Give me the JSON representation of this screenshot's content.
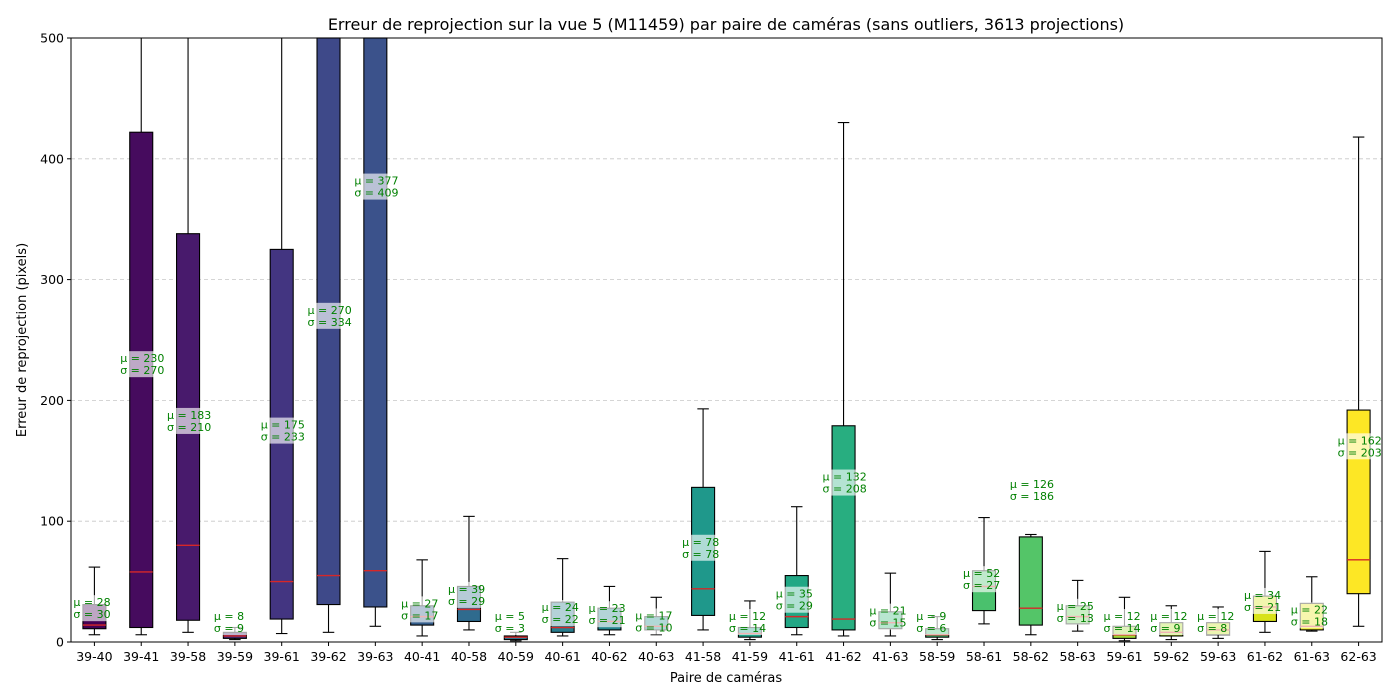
{
  "chart_data": {
    "type": "box",
    "title": "Erreur de reprojection sur la vue 5 (M11459) par paire de caméras (sans outliers, 3613 projections)",
    "xlabel": "Paire de caméras",
    "ylabel": "Erreur de reprojection (pixels)",
    "ylim": [
      0,
      500
    ],
    "yticks": [
      "0",
      "100",
      "200",
      "300",
      "400",
      "500"
    ],
    "grid": "horizontal dashed",
    "median_color": "#d62728",
    "annotation_color": "#008000",
    "boxes": [
      {
        "label": "39-40",
        "whislo": 6,
        "q1": 11,
        "med": 14,
        "q3": 31,
        "whishi": 62,
        "color": "#440154",
        "mean_text": "μ = 28",
        "std_text": "σ = 30"
      },
      {
        "label": "39-41",
        "whislo": 6,
        "q1": 12,
        "med": 58,
        "q3": 422,
        "whishi": 500,
        "color": "#460b5e",
        "mean_text": "μ = 230",
        "std_text": "σ = 270"
      },
      {
        "label": "39-58",
        "whislo": 8,
        "q1": 18,
        "med": 80,
        "q3": 338,
        "whishi": 500,
        "color": "#481a6c",
        "mean_text": "μ = 183",
        "std_text": "σ = 210"
      },
      {
        "label": "39-59",
        "whislo": 2,
        "q1": 3,
        "med": 5,
        "q3": 8,
        "whishi": 12,
        "color": "#472878",
        "mean_text": "μ = 8",
        "std_text": "σ = 9"
      },
      {
        "label": "39-61",
        "whislo": 7,
        "q1": 19,
        "med": 50,
        "q3": 325,
        "whishi": 500,
        "color": "#433581",
        "mean_text": "μ = 175",
        "std_text": "σ = 233"
      },
      {
        "label": "39-62",
        "whislo": 8,
        "q1": 31,
        "med": 55,
        "q3": 500,
        "whishi": 500,
        "color": "#3e4989",
        "mean_text": "μ = 270",
        "std_text": "σ = 334"
      },
      {
        "label": "39-63",
        "whislo": 13,
        "q1": 29,
        "med": 59,
        "q3": 500,
        "whishi": 500,
        "color": "#3b528b",
        "mean_text": "μ = 377",
        "std_text": "σ = 409"
      },
      {
        "label": "40-41",
        "whislo": 5,
        "q1": 14,
        "med": 21,
        "q3": 30,
        "whishi": 68,
        "color": "#355f8d",
        "mean_text": "μ = 27",
        "std_text": "σ = 17"
      },
      {
        "label": "40-58",
        "whislo": 10,
        "q1": 17,
        "med": 27,
        "q3": 46,
        "whishi": 104,
        "color": "#2f6b8e",
        "mean_text": "μ = 39",
        "std_text": "σ = 29"
      },
      {
        "label": "40-59",
        "whislo": 1,
        "q1": 2,
        "med": 4,
        "q3": 5,
        "whishi": 8,
        "color": "#2c728e",
        "mean_text": "μ = 5",
        "std_text": "σ = 3"
      },
      {
        "label": "40-61",
        "whislo": 5,
        "q1": 8,
        "med": 12,
        "q3": 33,
        "whishi": 69,
        "color": "#287d8e",
        "mean_text": "μ = 24",
        "std_text": "σ = 22"
      },
      {
        "label": "40-62",
        "whislo": 6,
        "q1": 10,
        "med": 17,
        "q3": 28,
        "whishi": 46,
        "color": "#25858e",
        "mean_text": "μ = 23",
        "std_text": "σ = 21"
      },
      {
        "label": "40-63",
        "whislo": 6,
        "q1": 10,
        "med": 13,
        "q3": 21,
        "whishi": 37,
        "color": "#21918c",
        "mean_text": "μ = 17",
        "std_text": "σ = 10"
      },
      {
        "label": "41-58",
        "whislo": 10,
        "q1": 22,
        "med": 44,
        "q3": 128,
        "whishi": 193,
        "color": "#1f988b",
        "mean_text": "μ = 78",
        "std_text": "σ = 78"
      },
      {
        "label": "41-59",
        "whislo": 2,
        "q1": 4,
        "med": 7,
        "q3": 12,
        "whishi": 34,
        "color": "#1fa187",
        "mean_text": "μ = 12",
        "std_text": "σ = 14"
      },
      {
        "label": "41-61",
        "whislo": 6,
        "q1": 12,
        "med": 21,
        "q3": 55,
        "whishi": 112,
        "color": "#22a785",
        "mean_text": "μ = 35",
        "std_text": "σ = 29"
      },
      {
        "label": "41-62",
        "whislo": 5,
        "q1": 10,
        "med": 19,
        "q3": 179,
        "whishi": 430,
        "color": "#28ae80",
        "mean_text": "μ = 132",
        "std_text": "σ = 208"
      },
      {
        "label": "41-63",
        "whislo": 5,
        "q1": 11,
        "med": 16,
        "q3": 25,
        "whishi": 57,
        "color": "#35b779",
        "mean_text": "μ = 21",
        "std_text": "σ = 15"
      },
      {
        "label": "58-59",
        "whislo": 2,
        "q1": 4,
        "med": 6,
        "q3": 11,
        "whishi": 21,
        "color": "#3fbc73",
        "mean_text": "μ = 9",
        "std_text": "σ = 6"
      },
      {
        "label": "58-61",
        "whislo": 15,
        "q1": 26,
        "med": 46,
        "q3": 59,
        "whishi": 103,
        "color": "#4ac16d",
        "mean_text": "μ = 52",
        "std_text": "σ = 27"
      },
      {
        "label": "58-62",
        "whislo": 6,
        "q1": 14,
        "med": 28,
        "q3": 87,
        "whishi": 89,
        "color": "#54c568",
        "mean_text": "μ = 126",
        "std_text": "σ = 186"
      },
      {
        "label": "58-63",
        "whislo": 9,
        "q1": 15,
        "med": 21,
        "q3": 30,
        "whishi": 51,
        "color": "#6ccd5a",
        "mean_text": "μ = 25",
        "std_text": "σ = 13"
      },
      {
        "label": "59-61",
        "whislo": 1,
        "q1": 3,
        "med": 6,
        "q3": 13,
        "whishi": 37,
        "color": "#a0da39",
        "mean_text": "μ = 12",
        "std_text": "σ = 14"
      },
      {
        "label": "59-62",
        "whislo": 2,
        "q1": 5,
        "med": 8,
        "q3": 16,
        "whishi": 30,
        "color": "#b5de2b",
        "mean_text": "μ = 12",
        "std_text": "σ = 9"
      },
      {
        "label": "59-63",
        "whislo": 3,
        "q1": 6,
        "med": 10,
        "q3": 16,
        "whishi": 29,
        "color": "#c8e020",
        "mean_text": "μ = 12",
        "std_text": "σ = 8"
      },
      {
        "label": "61-62",
        "whislo": 8,
        "q1": 17,
        "med": 29,
        "q3": 38,
        "whishi": 75,
        "color": "#d8e219",
        "mean_text": "μ = 34",
        "std_text": "σ = 21"
      },
      {
        "label": "61-63",
        "whislo": 9,
        "q1": 10,
        "med": 13,
        "q3": 32,
        "whishi": 54,
        "color": "#e7e419",
        "mean_text": "μ = 22",
        "std_text": "σ = 18"
      },
      {
        "label": "62-63",
        "whislo": 13,
        "q1": 40,
        "med": 68,
        "q3": 192,
        "whishi": 418,
        "color": "#fde725",
        "mean_text": "μ = 162",
        "std_text": "σ = 203"
      }
    ]
  }
}
